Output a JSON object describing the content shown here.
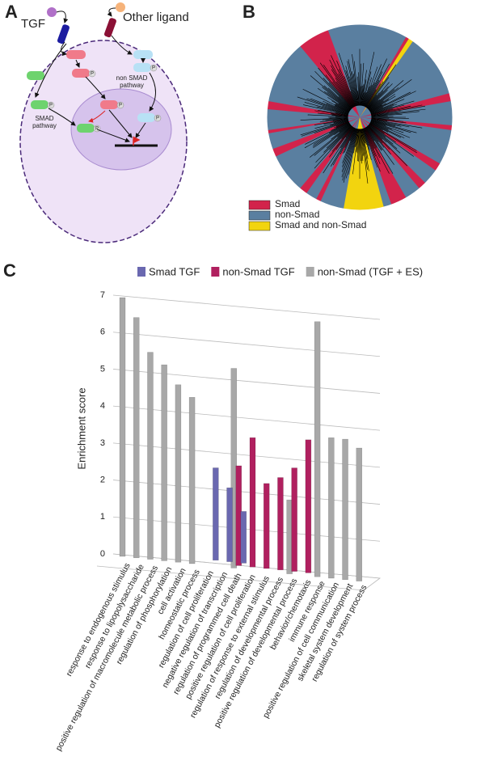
{
  "panel_a": {
    "label": "A",
    "ligand_1": "TGF",
    "ligand_2": "Other ligand",
    "non_smad_pathway": [
      "non SMAD",
      "pathway"
    ],
    "smad_pathway": [
      "SMAD",
      "pathway"
    ],
    "phospho": "P"
  },
  "panel_b": {
    "label": "B",
    "legend": [
      {
        "name": "Smad",
        "color": "#d2234b"
      },
      {
        "name": "non-Smad",
        "color": "#5a7fa0"
      },
      {
        "name": "Smad and non-Smad",
        "color": "#f2d40f"
      }
    ]
  },
  "chart_data": {
    "type": "bar",
    "panel_label": "C",
    "y_label": "Enrichment score",
    "categories": [
      "response to endogenous stimulus",
      "response to lipopolysaccharide",
      "positive regulation of macromolecule metabolic process",
      "regulation of phosphorylation",
      "cell activation",
      "homeostatic process",
      "regulation of cell proliferation",
      "negative regulation of transcription",
      "regulation of programmed cell death",
      "positive regulation of cell proliferation",
      "regulation of response to external stimulus",
      "regulation of developmental process",
      "positive regulation of developmental process",
      "behavior/chemotaxis",
      "immune response",
      "positive regulation of cell communication",
      "skeletal system development",
      "regulation of system process"
    ],
    "series": [
      {
        "name": "Smad TGF",
        "color": "#6a68b0",
        "values": [
          null,
          null,
          null,
          null,
          null,
          null,
          2.5,
          2.0,
          1.4,
          null,
          null,
          null,
          null,
          null,
          null,
          null,
          null,
          null
        ]
      },
      {
        "name": "non-Smad TGF",
        "color": "#b0205f",
        "values": [
          null,
          null,
          null,
          null,
          null,
          null,
          null,
          null,
          2.7,
          3.5,
          2.3,
          2.5,
          2.8,
          3.6,
          null,
          null,
          null,
          null
        ]
      },
      {
        "name": "non-Smad (TGF + ES)",
        "color": "#a8a8a8",
        "values": [
          7.0,
          6.5,
          5.6,
          5.3,
          4.8,
          4.5,
          null,
          null,
          5.4,
          null,
          null,
          null,
          2.0,
          null,
          6.9,
          3.8,
          3.8,
          3.6
        ]
      }
    ],
    "ylim": [
      0,
      7
    ],
    "yticks": [
      0,
      1,
      2,
      3,
      4,
      5,
      6,
      7
    ],
    "grid": true
  }
}
